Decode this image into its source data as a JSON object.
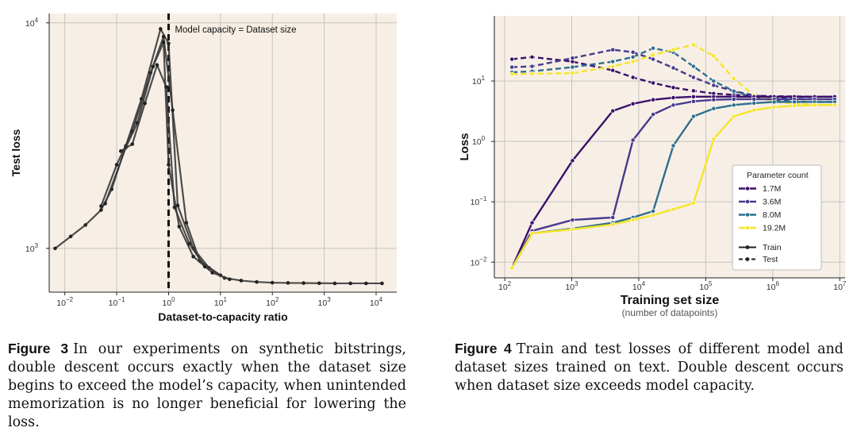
{
  "chart_data": [
    {
      "type": "line",
      "title": "",
      "xlabel": "Dataset-to-capacity ratio",
      "ylabel": "Test loss",
      "xscale": "log",
      "yscale": "log",
      "xlim": [
        0.005,
        25000
      ],
      "ylim": [
        640,
        11000
      ],
      "xticks": [
        {
          "v": 0.01,
          "b": "10",
          "e": "−2"
        },
        {
          "v": 0.1,
          "b": "10",
          "e": "−1"
        },
        {
          "v": 1,
          "b": "10",
          "e": "0"
        },
        {
          "v": 10,
          "b": "10",
          "e": "1"
        },
        {
          "v": 100,
          "b": "10",
          "e": "2"
        },
        {
          "v": 1000,
          "b": "10",
          "e": "3"
        },
        {
          "v": 10000,
          "b": "10",
          "e": "4"
        }
      ],
      "yticks": [
        {
          "v": 1000,
          "b": "10",
          "e": "3"
        },
        {
          "v": 10000,
          "b": "10",
          "e": "4"
        }
      ],
      "grid": true,
      "background": "#f7efe5",
      "line_color": "#3a3a3a",
      "annotation": {
        "x": 1,
        "text": "Model capacity = Dataset size",
        "style": "dashed-vertical"
      },
      "series": [
        {
          "x": [
            0.0065,
            0.013,
            0.025,
            0.05,
            0.08,
            0.15,
            0.3,
            0.7,
            1.0,
            1.5,
            3,
            6,
            12,
            25,
            50,
            100,
            200,
            400,
            800,
            1600,
            3200,
            6400,
            13000
          ],
          "y": [
            1000,
            1130,
            1270,
            1480,
            1830,
            2850,
            4600,
            9400,
            8100,
            1550,
            1000,
            820,
            740,
            720,
            710,
            705,
            703,
            702,
            701,
            700,
            700,
            700,
            700
          ]
        },
        {
          "x": [
            0.05,
            0.1,
            0.2,
            0.45,
            0.8,
            1.2,
            2.2,
            4,
            10
          ],
          "y": [
            1540,
            2350,
            3300,
            6000,
            8700,
            4100,
            1300,
            880,
            760
          ]
        },
        {
          "x": [
            0.06,
            0.15,
            0.25,
            0.5,
            0.8,
            1.0,
            1.6,
            3,
            7,
            15
          ],
          "y": [
            1580,
            2800,
            3600,
            6400,
            8200,
            2350,
            1250,
            920,
            780,
            730
          ]
        },
        {
          "x": [
            0.12,
            0.2,
            0.35,
            0.6,
            0.9,
            1.3,
            2.5,
            5
          ],
          "y": [
            2700,
            2900,
            4400,
            6500,
            5200,
            1520,
            1050,
            830
          ]
        }
      ]
    },
    {
      "type": "line",
      "title": "",
      "xlabel": "Training set size",
      "xsublabel": "(number of datapoints)",
      "ylabel": "Loss",
      "xscale": "log",
      "yscale": "log",
      "xlim": [
        70,
        12000000
      ],
      "ylim": [
        0.0055,
        120
      ],
      "xticks": [
        {
          "v": 100,
          "b": "10",
          "e": "2"
        },
        {
          "v": 1000,
          "b": "10",
          "e": "3"
        },
        {
          "v": 10000,
          "b": "10",
          "e": "4"
        },
        {
          "v": 100000,
          "b": "10",
          "e": "5"
        },
        {
          "v": 1000000,
          "b": "10",
          "e": "6"
        },
        {
          "v": 10000000,
          "b": "10",
          "e": "7"
        }
      ],
      "yticks": [
        {
          "v": 0.01,
          "b": "10",
          "e": "−2"
        },
        {
          "v": 0.1,
          "b": "10",
          "e": "−1"
        },
        {
          "v": 1,
          "b": "10",
          "e": "0"
        },
        {
          "v": 10,
          "b": "10",
          "e": "1"
        }
      ],
      "grid": true,
      "background": "#f7efe5",
      "legend": {
        "position": "lower-right",
        "title": "Parameter count",
        "style_entries": [
          "Train",
          "Test"
        ]
      },
      "x": [
        128,
        256,
        1024,
        4096,
        8192,
        16384,
        32768,
        65536,
        131072,
        262144,
        524288,
        1048576,
        2097152,
        4194304,
        8388608
      ],
      "series": [
        {
          "name": "1.7M",
          "color": "#3b0f6b",
          "train": [
            0.008,
            0.045,
            0.48,
            3.2,
            4.2,
            4.9,
            5.3,
            5.5,
            5.5,
            5.5,
            5.5,
            5.5,
            5.5,
            5.5,
            5.5
          ],
          "test": [
            23,
            25,
            21,
            15,
            11.5,
            9.3,
            7.8,
            6.9,
            6.2,
            5.9,
            5.7,
            5.6,
            5.55,
            5.5,
            5.5
          ]
        },
        {
          "name": "3.6M",
          "color": "#463a8c",
          "train": [
            0.008,
            0.033,
            0.05,
            0.055,
            1.05,
            2.8,
            4.0,
            4.6,
            4.9,
            5.0,
            5.0,
            5.0,
            5.0,
            5.0,
            5.0
          ],
          "test": [
            17,
            17.5,
            24,
            33,
            30,
            23,
            16.5,
            11.5,
            8.5,
            6.8,
            5.8,
            5.3,
            5.1,
            5.0,
            5.0
          ]
        },
        {
          "name": "8.0M",
          "color": "#2e6e8e",
          "train": [
            0.008,
            0.03,
            0.036,
            0.045,
            0.055,
            0.07,
            0.85,
            2.6,
            3.5,
            4.0,
            4.3,
            4.5,
            4.5,
            4.5,
            4.5
          ],
          "test": [
            14,
            14.5,
            17,
            21,
            25,
            35,
            30,
            17.5,
            10,
            6.8,
            5.3,
            4.8,
            4.6,
            4.5,
            4.5
          ]
        },
        {
          "name": "19.2M",
          "color": "#f5e52a",
          "train": [
            0.008,
            0.03,
            0.035,
            0.042,
            0.05,
            0.06,
            0.075,
            0.095,
            1.1,
            2.6,
            3.3,
            3.7,
            3.9,
            4.0,
            4.0
          ],
          "test": [
            13,
            13.2,
            13.5,
            17.5,
            21,
            27,
            33,
            40,
            26,
            11,
            5.8,
            4.6,
            4.2,
            4.05,
            4.0
          ]
        }
      ]
    }
  ],
  "captions": {
    "fig3_label": "Figure 3",
    "fig3_text": "In our experiments on synthetic bitstrings, double descent occurs exactly when the dataset size begins to exceed the model’s capacity, when unintended memorization is no longer beneficial for lowering the loss.",
    "fig4_label": "Figure 4",
    "fig4_text": "Train and test losses of different model and dataset sizes trained on text. Double descent occurs when dataset size exceeds model capacity."
  }
}
